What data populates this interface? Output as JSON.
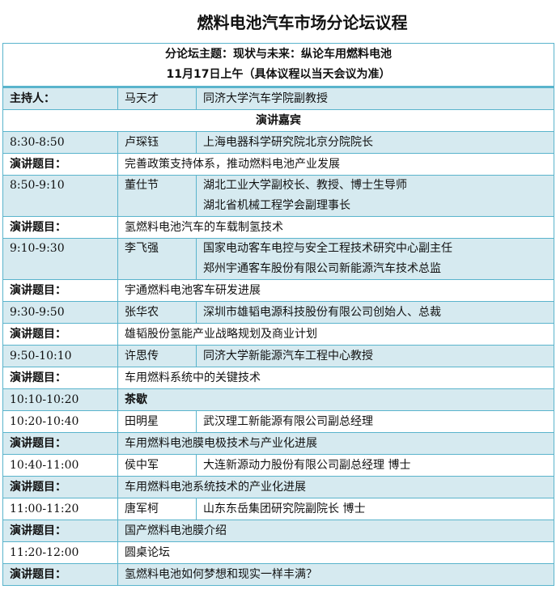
{
  "title": "燃料电池汽车市场分论坛议程",
  "header": {
    "line1": "分论坛主题：现状与未来：纵论车用燃料电池",
    "line2": "11月17日上午（具体议程以当天会议为准）"
  },
  "host": {
    "label": "主持人：",
    "name": "马天才",
    "title": "同济大学汽车学院副教授"
  },
  "speakers_heading": "演讲嘉宾",
  "topic_label": "演讲题目：",
  "sessions": [
    {
      "time": "8:30-8:50",
      "name": "卢琛钰",
      "titles": [
        "上海电器科学研究院北京分院院长"
      ],
      "topic": "完善政策支持体系，推动燃料电池产业发展"
    },
    {
      "time": "8:50-9:10",
      "name": "董仕节",
      "titles": [
        "湖北工业大学副校长、教授、博士生导师",
        "湖北省机械工程学会副理事长"
      ],
      "topic": "氢燃料电池汽车的车载制氢技术"
    },
    {
      "time": "9:10-9:30",
      "name": "李飞强",
      "titles": [
        "国家电动客车电控与安全工程技术研究中心副主任",
        "郑州宇通客车股份有限公司新能源汽车技术总监"
      ],
      "topic": "宇通燃料电池客车研发进展"
    },
    {
      "time": "9:30-9:50",
      "name": "张华农",
      "titles": [
        "深圳市雄韬电源科技股份有限公司创始人、总裁"
      ],
      "topic": "雄韬股份氢能产业战略规划及商业计划"
    },
    {
      "time": "9:50-10:10",
      "name": "许思传",
      "titles": [
        "同济大学新能源汽车工程中心教授"
      ],
      "topic": "车用燃料系统中的关键技术"
    },
    {
      "time": "10:10-10:20",
      "break": "茶歇"
    },
    {
      "time": "10:20-10:40",
      "name": "田明星",
      "titles": [
        "武汉理工新能源有限公司副总经理"
      ],
      "topic": "车用燃料电池膜电极技术与产业化进展"
    },
    {
      "time": "10:40-11:00",
      "name": "侯中军",
      "titles": [
        "大连新源动力股份有限公司副总经理 博士"
      ],
      "topic": "车用燃料电池系统技术的产业化进展"
    },
    {
      "time": "11:00-11:20",
      "name": "唐军柯",
      "titles": [
        "山东东岳集团研究院副院长 博士"
      ],
      "topic": "国产燃料电池膜介绍"
    },
    {
      "time": "11:20-12:00",
      "panel": "圆桌论坛",
      "topic": "氢燃料电池如何梦想和现实一样丰满？"
    }
  ],
  "colors": {
    "border": "#5ab4cc",
    "shade": "#d6eaf0"
  }
}
